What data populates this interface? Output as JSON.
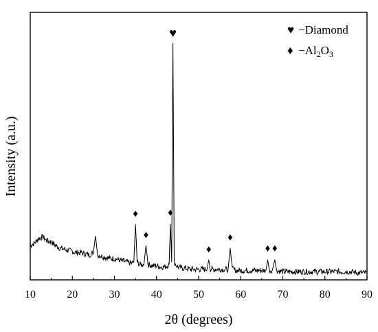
{
  "chart_data": {
    "type": "line",
    "xlabel": "2θ (degrees)",
    "ylabel": "Intensity (a.u.)",
    "xlim": [
      10,
      90
    ],
    "x_ticks": [
      "10",
      "20",
      "30",
      "40",
      "50",
      "60",
      "70",
      "80",
      "90"
    ],
    "y_ticks_shown": false,
    "grid": false,
    "legend_position": "top-right",
    "line_color": "#000000",
    "series": [
      {
        "points": [
          [
            10,
            0.13
          ],
          [
            11,
            0.14
          ],
          [
            12,
            0.16
          ],
          [
            13,
            0.165
          ],
          [
            14,
            0.15
          ],
          [
            15,
            0.145
          ],
          [
            16,
            0.13
          ],
          [
            17,
            0.12
          ],
          [
            18,
            0.115
          ],
          [
            19,
            0.11
          ],
          [
            20,
            0.105
          ],
          [
            21,
            0.1
          ],
          [
            22,
            0.1
          ],
          [
            23,
            0.095
          ],
          [
            24,
            0.09
          ],
          [
            25,
            0.1
          ],
          [
            25.5,
            0.17
          ],
          [
            26,
            0.09
          ],
          [
            27,
            0.085
          ],
          [
            28,
            0.08
          ],
          [
            29,
            0.075
          ],
          [
            30,
            0.075
          ],
          [
            31,
            0.07
          ],
          [
            32,
            0.065
          ],
          [
            33,
            0.06
          ],
          [
            34,
            0.055
          ],
          [
            34.6,
            0.06
          ],
          [
            35.0,
            0.22
          ],
          [
            35.4,
            0.06
          ],
          [
            36,
            0.05
          ],
          [
            37,
            0.05
          ],
          [
            37.5,
            0.13
          ],
          [
            38,
            0.05
          ],
          [
            39,
            0.045
          ],
          [
            40,
            0.045
          ],
          [
            41,
            0.04
          ],
          [
            42,
            0.04
          ],
          [
            43,
            0.05
          ],
          [
            43.3,
            0.22
          ],
          [
            43.6,
            0.06
          ],
          [
            43.9,
            0.98
          ],
          [
            44.2,
            0.06
          ],
          [
            45,
            0.04
          ],
          [
            46,
            0.035
          ],
          [
            47,
            0.035
          ],
          [
            48,
            0.03
          ],
          [
            49,
            0.03
          ],
          [
            50,
            0.03
          ],
          [
            51,
            0.03
          ],
          [
            52,
            0.03
          ],
          [
            52.4,
            0.07
          ],
          [
            52.8,
            0.03
          ],
          [
            54,
            0.03
          ],
          [
            55,
            0.03
          ],
          [
            56,
            0.03
          ],
          [
            57,
            0.03
          ],
          [
            57.5,
            0.12
          ],
          [
            58,
            0.03
          ],
          [
            59,
            0.025
          ],
          [
            60,
            0.025
          ],
          [
            61,
            0.025
          ],
          [
            62,
            0.025
          ],
          [
            63,
            0.025
          ],
          [
            64,
            0.025
          ],
          [
            65,
            0.025
          ],
          [
            66,
            0.025
          ],
          [
            66.4,
            0.07
          ],
          [
            66.8,
            0.025
          ],
          [
            67.5,
            0.025
          ],
          [
            68.1,
            0.07
          ],
          [
            68.5,
            0.025
          ],
          [
            70,
            0.02
          ],
          [
            72,
            0.02
          ],
          [
            74,
            0.02
          ],
          [
            76,
            0.02
          ],
          [
            78,
            0.02
          ],
          [
            80,
            0.02
          ],
          [
            82,
            0.02
          ],
          [
            84,
            0.02
          ],
          [
            86,
            0.02
          ],
          [
            88,
            0.015
          ],
          [
            90,
            0.015
          ]
        ]
      }
    ],
    "markers": [
      {
        "symbol": "♥",
        "x": 43.9,
        "y": 1.0
      },
      {
        "symbol": "♦",
        "x": 35.0,
        "y": 0.245
      },
      {
        "symbol": "♦",
        "x": 37.5,
        "y": 0.155
      },
      {
        "symbol": "♦",
        "x": 43.3,
        "y": 0.25
      },
      {
        "symbol": "♦",
        "x": 52.4,
        "y": 0.095
      },
      {
        "symbol": "♦",
        "x": 57.5,
        "y": 0.145
      },
      {
        "symbol": "♦",
        "x": 66.4,
        "y": 0.1
      },
      {
        "symbol": "♦",
        "x": 68.1,
        "y": 0.1
      }
    ],
    "legend": [
      {
        "symbol": "♥",
        "label": "−Diamond"
      },
      {
        "symbol": "♦",
        "label_prefix": "−Al",
        "sub1": "2",
        "label_mid": "O",
        "sub2": "3"
      }
    ]
  }
}
